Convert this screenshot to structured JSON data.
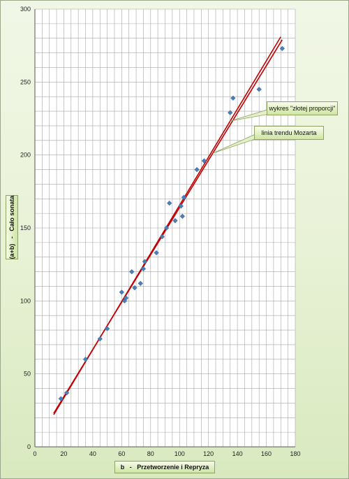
{
  "chart_data": {
    "type": "scatter",
    "xlabel": "b   -   Przetworzenie i Repryza",
    "ylabel": "(a+b)   -   Cało sonata",
    "xlim": [
      0,
      180
    ],
    "ylim": [
      0,
      300
    ],
    "x_ticks": [
      0,
      20,
      40,
      60,
      80,
      100,
      120,
      140,
      160,
      180
    ],
    "y_ticks": [
      0,
      50,
      100,
      150,
      200,
      250,
      300
    ],
    "x_tick_labels": [
      "0",
      "20",
      "40",
      "60",
      "80",
      "100",
      "120",
      "140",
      "160",
      "180"
    ],
    "y_tick_labels": [
      "0",
      "50",
      "100",
      "150",
      "200",
      "250",
      "300"
    ],
    "grid": true,
    "points": [
      {
        "x": 18,
        "y": 33
      },
      {
        "x": 22,
        "y": 37
      },
      {
        "x": 35,
        "y": 60
      },
      {
        "x": 45,
        "y": 74
      },
      {
        "x": 50,
        "y": 81
      },
      {
        "x": 60,
        "y": 106
      },
      {
        "x": 62,
        "y": 100
      },
      {
        "x": 63,
        "y": 102
      },
      {
        "x": 67,
        "y": 120
      },
      {
        "x": 69,
        "y": 109
      },
      {
        "x": 73,
        "y": 112
      },
      {
        "x": 75,
        "y": 122
      },
      {
        "x": 76,
        "y": 127
      },
      {
        "x": 84,
        "y": 133
      },
      {
        "x": 88,
        "y": 144
      },
      {
        "x": 91,
        "y": 150
      },
      {
        "x": 93,
        "y": 167
      },
      {
        "x": 97,
        "y": 155
      },
      {
        "x": 101,
        "y": 165
      },
      {
        "x": 102,
        "y": 158
      },
      {
        "x": 103,
        "y": 171
      },
      {
        "x": 112,
        "y": 190
      },
      {
        "x": 117,
        "y": 196
      },
      {
        "x": 135,
        "y": 229
      },
      {
        "x": 137,
        "y": 239
      },
      {
        "x": 155,
        "y": 245
      },
      {
        "x": 171,
        "y": 273
      }
    ],
    "point_color": "#4a7ebb",
    "lines": [
      {
        "name": "wykres \"złotej proporcji\"",
        "x": [
          13,
          170
        ],
        "y": [
          22,
          281
        ],
        "color": "#c00000"
      },
      {
        "name": "linia trendu Mozarta",
        "x": [
          13,
          171
        ],
        "y": [
          23,
          279
        ],
        "color": "#c00000"
      }
    ],
    "annotations": [
      {
        "text": "wykres \"złotej proporcji\""
      },
      {
        "text": "linia trendu Mozarta"
      }
    ]
  }
}
